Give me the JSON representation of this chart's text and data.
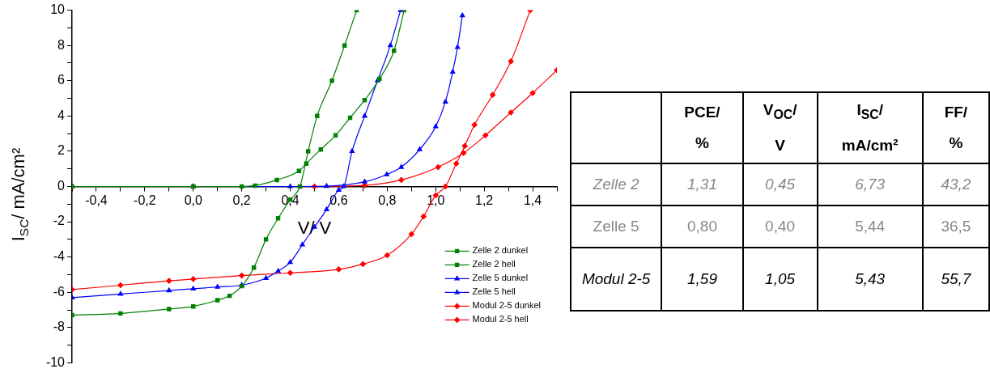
{
  "chart_data": [
    {
      "type": "line",
      "xlabel": "V/ V",
      "ylabel": "I$_{SC}$/ mA/cm²",
      "xlim": [
        -0.5,
        1.5
      ],
      "ylim": [
        -10,
        10
      ],
      "xticks": [
        {
          "value": -0.5,
          "label": null
        },
        {
          "value": -0.4,
          "label": "-0,4"
        },
        {
          "value": -0.3,
          "label": null
        },
        {
          "value": -0.2,
          "label": "-0,2"
        },
        {
          "value": -0.1,
          "label": null
        },
        {
          "value": 0,
          "label": "0,0"
        },
        {
          "value": 0.1,
          "label": null
        },
        {
          "value": 0.2,
          "label": "0,2"
        },
        {
          "value": 0.3,
          "label": null
        },
        {
          "value": 0.4,
          "label": "0,4"
        },
        {
          "value": 0.5,
          "label": null
        },
        {
          "value": 0.6,
          "label": "0,6"
        },
        {
          "value": 0.7,
          "label": null
        },
        {
          "value": 0.8,
          "label": "0,8"
        },
        {
          "value": 0.9,
          "label": null
        },
        {
          "value": 1.0,
          "label": "1,0"
        },
        {
          "value": 1.1,
          "label": null
        },
        {
          "value": 1.2,
          "label": "1,2"
        },
        {
          "value": 1.3,
          "label": null
        },
        {
          "value": 1.4,
          "label": "1,4"
        },
        {
          "value": 1.5,
          "label": null
        }
      ],
      "yticks": [
        -10,
        {
          "value": -9,
          "label": null
        },
        -8,
        {
          "value": -7,
          "label": null
        },
        -6,
        {
          "value": -5,
          "label": null
        },
        -4,
        {
          "value": -3,
          "label": null
        },
        -2,
        {
          "value": -1,
          "label": null
        },
        0,
        {
          "value": 1,
          "label": null
        },
        2,
        {
          "value": 3,
          "label": null
        },
        4,
        {
          "value": 5,
          "label": null
        },
        6,
        {
          "value": 7,
          "label": null
        },
        8,
        {
          "value": 9,
          "label": null
        },
        10
      ],
      "legend": "bottom right",
      "grid": false,
      "series": [
        {
          "name": "Zelle 2 dunkel",
          "color": "#008000",
          "marker": "square",
          "x": [
            -0.5,
            0,
            0.2,
            0.255,
            0.345,
            0.436,
            0.466,
            0.526,
            0.587,
            0.647,
            0.707,
            0.768,
            0.828,
            0.87
          ],
          "values": [
            0,
            0,
            0,
            0.05,
            0.37,
            0.88,
            1.3,
            2.1,
            2.9,
            3.9,
            4.9,
            6.1,
            7.7,
            10
          ]
        },
        {
          "name": "Zelle 2 hell",
          "color": "#008000",
          "marker": "square",
          "x": [
            -0.5,
            -0.3,
            -0.1,
            0,
            0.1,
            0.15,
            0.2,
            0.25,
            0.3,
            0.35,
            0.4,
            0.44,
            0.474,
            0.511,
            0.572,
            0.624,
            0.674
          ],
          "values": [
            -7.3,
            -7.2,
            -6.95,
            -6.8,
            -6.45,
            -6.2,
            -5.65,
            -4.6,
            -3.0,
            -1.8,
            -0.75,
            0,
            2,
            4,
            6,
            8,
            10
          ]
        },
        {
          "name": "Zelle 5 dunkel",
          "color": "#0000ff",
          "marker": "triangle",
          "x": [
            -0.5,
            0,
            0.4,
            0.55,
            0.707,
            0.798,
            0.858,
            0.934,
            1.0,
            1.04,
            1.07,
            1.09,
            1.11
          ],
          "values": [
            0,
            0,
            0,
            0.02,
            0.27,
            0.68,
            1.1,
            2.1,
            3.4,
            4.8,
            6.5,
            7.9,
            9.7
          ]
        },
        {
          "name": "Zelle 5 hell",
          "color": "#0000ff",
          "marker": "triangle",
          "x": [
            -0.5,
            -0.3,
            -0.1,
            0,
            0.1,
            0.2,
            0.3,
            0.35,
            0.4,
            0.45,
            0.5,
            0.55,
            0.6,
            0.621,
            0.655,
            0.707,
            0.76,
            0.813,
            0.855
          ],
          "values": [
            -6.3,
            -6.1,
            -5.9,
            -5.8,
            -5.7,
            -5.6,
            -5.2,
            -4.8,
            -4.3,
            -3.3,
            -2.3,
            -1.3,
            -0.2,
            0,
            2,
            4,
            6,
            8,
            10
          ]
        },
        {
          "name": "Modul 2-5 dunkel",
          "color": "#ff0000",
          "marker": "diamond",
          "x": [
            -0.5,
            0,
            0.5,
            0.707,
            0.858,
            1.01,
            1.115,
            1.205,
            1.31,
            1.4,
            1.5
          ],
          "values": [
            0,
            0,
            0,
            0.06,
            0.37,
            1.1,
            1.9,
            2.9,
            4.2,
            5.3,
            6.6
          ]
        },
        {
          "name": "Modul 2-5 hell",
          "color": "#ff0000",
          "marker": "diamond",
          "x": [
            -0.5,
            -0.3,
            -0.1,
            0,
            0.2,
            0.4,
            0.6,
            0.7,
            0.8,
            0.9,
            0.95,
            1.0,
            1.04,
            1.085,
            1.12,
            1.16,
            1.235,
            1.31,
            1.39
          ],
          "values": [
            -5.85,
            -5.6,
            -5.35,
            -5.25,
            -5.05,
            -4.9,
            -4.7,
            -4.4,
            -3.9,
            -2.7,
            -1.7,
            -0.5,
            0,
            1.3,
            2.3,
            3.5,
            5.2,
            7.1,
            10
          ]
        }
      ]
    },
    {
      "type": "other",
      "categories": [
        "PCE/ %",
        "V$_{OC}$/ V",
        "I$_{SC}$/ mA/cm²",
        "FF/ %"
      ],
      "y_categories": [
        "Zelle 2",
        "Zelle 5",
        "Modul 2-5"
      ],
      "cell_labels": [
        [
          "1,31",
          "0,45",
          "6,73",
          "43,2"
        ],
        [
          "0,80",
          "0,40",
          "5,44",
          "36,5"
        ],
        [
          "1,59",
          "1,05",
          "5,43",
          "55,7"
        ]
      ]
    }
  ]
}
